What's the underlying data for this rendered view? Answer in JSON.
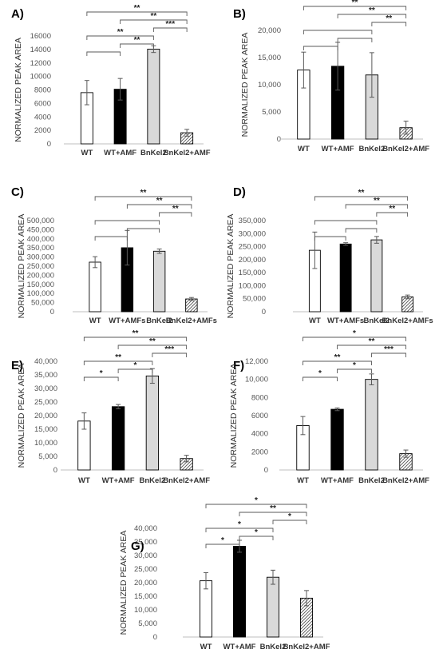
{
  "figure": {
    "background": "#ffffff"
  },
  "chart_data": [
    {
      "panel": "A)",
      "type": "bar",
      "ylabel": "NORMALIZED PEAK AREA",
      "categories": [
        "WT",
        "WT+AMF",
        "BnKel2",
        "BnKel2+AMF"
      ],
      "values": [
        7600,
        8100,
        14050,
        1650
      ],
      "errors": [
        1800,
        1600,
        500,
        500
      ],
      "ylim": [
        0,
        16000
      ],
      "yticks": [
        "0",
        "2000",
        "4000",
        "6000",
        "8000",
        "10000",
        "12000",
        "14000",
        "16000"
      ],
      "brackets": [
        {
          "from": 0,
          "to": 3,
          "label": "**"
        },
        {
          "from": 1,
          "to": 3,
          "label": "**"
        },
        {
          "from": 2,
          "to": 3,
          "label": "***"
        },
        {
          "from": 0,
          "to": 2,
          "label": "**"
        },
        {
          "from": 1,
          "to": 2,
          "label": "**"
        },
        {
          "from": 0,
          "to": 1,
          "label": ""
        }
      ]
    },
    {
      "panel": "B)",
      "type": "bar",
      "ylabel": "NORMALIZED PEAK AREA",
      "categories": [
        "WT",
        "WT+AMF",
        "BnKel2",
        "BnKel2+AMF"
      ],
      "values": [
        12700,
        13400,
        11800,
        2100
      ],
      "errors": [
        3300,
        4400,
        4100,
        1200
      ],
      "ylim": [
        0,
        20000
      ],
      "yticks": [
        "0",
        "5,000",
        "10,000",
        "15,000",
        "20,000"
      ],
      "brackets": [
        {
          "from": 0,
          "to": 3,
          "label": "**"
        },
        {
          "from": 1,
          "to": 3,
          "label": "**"
        },
        {
          "from": 2,
          "to": 3,
          "label": "**"
        },
        {
          "from": 0,
          "to": 2,
          "label": ""
        },
        {
          "from": 1,
          "to": 2,
          "label": ""
        },
        {
          "from": 0,
          "to": 1,
          "label": ""
        }
      ]
    },
    {
      "panel": "C)",
      "type": "bar",
      "ylabel": "NORMALIZED PEAK AREA",
      "categories": [
        "WT",
        "WT+AMFs",
        "BnKel2",
        "BnKel2+AMFs"
      ],
      "values": [
        272000,
        351000,
        332000,
        70000
      ],
      "errors": [
        30000,
        95000,
        12000,
        8000
      ],
      "ylim": [
        0,
        500000
      ],
      "yticks": [
        "0",
        "50,000",
        "100,000",
        "150,000",
        "200,000",
        "250,000",
        "300,000",
        "350,000",
        "400,000",
        "450,000",
        "500,000"
      ],
      "brackets": [
        {
          "from": 0,
          "to": 3,
          "label": "**"
        },
        {
          "from": 1,
          "to": 3,
          "label": "**"
        },
        {
          "from": 2,
          "to": 3,
          "label": "**"
        },
        {
          "from": 0,
          "to": 2,
          "label": ""
        },
        {
          "from": 1,
          "to": 2,
          "label": ""
        },
        {
          "from": 0,
          "to": 1,
          "label": ""
        }
      ]
    },
    {
      "panel": "D)",
      "type": "bar",
      "ylabel": "NORMALIZED PEAK AREA",
      "categories": [
        "WT",
        "WT+AMFs",
        "BnKel2",
        "BnKel2+AMFs"
      ],
      "values": [
        236000,
        260000,
        276000,
        57000
      ],
      "errors": [
        70000,
        5000,
        13000,
        7000
      ],
      "ylim": [
        0,
        350000
      ],
      "yticks": [
        "0",
        "50,000",
        "100,000",
        "150,000",
        "200,000",
        "250,000",
        "300,000",
        "350,000"
      ],
      "brackets": [
        {
          "from": 0,
          "to": 3,
          "label": "**"
        },
        {
          "from": 1,
          "to": 3,
          "label": "**"
        },
        {
          "from": 2,
          "to": 3,
          "label": "**"
        },
        {
          "from": 0,
          "to": 2,
          "label": ""
        },
        {
          "from": 1,
          "to": 2,
          "label": ""
        },
        {
          "from": 0,
          "to": 1,
          "label": ""
        }
      ]
    },
    {
      "panel": "E)",
      "type": "bar",
      "ylabel": "NORMALIZED PEAK AREA",
      "categories": [
        "WT",
        "WT+AMF",
        "BnKel2",
        "BnKel2+AMF"
      ],
      "values": [
        18000,
        23300,
        34600,
        4200
      ],
      "errors": [
        3000,
        800,
        2700,
        1200
      ],
      "ylim": [
        0,
        40000
      ],
      "yticks": [
        "0",
        "5,000",
        "10,000",
        "15,000",
        "20,000",
        "25,000",
        "30,000",
        "35,000",
        "40,000"
      ],
      "brackets": [
        {
          "from": 0,
          "to": 3,
          "label": "**"
        },
        {
          "from": 1,
          "to": 3,
          "label": "**"
        },
        {
          "from": 2,
          "to": 3,
          "label": "***"
        },
        {
          "from": 0,
          "to": 2,
          "label": "**"
        },
        {
          "from": 1,
          "to": 2,
          "label": "*"
        },
        {
          "from": 0,
          "to": 1,
          "label": "*"
        }
      ]
    },
    {
      "panel": "F)",
      "type": "bar",
      "ylabel": "NORMALIZED PEAK AREA",
      "categories": [
        "WT",
        "WT+AMF",
        "BnKel2",
        "BnKel2+AMF"
      ],
      "values": [
        4900,
        6700,
        10000,
        1800
      ],
      "errors": [
        1000,
        150,
        600,
        400
      ],
      "ylim": [
        0,
        12000
      ],
      "yticks": [
        "0",
        "2000",
        "4000",
        "6000",
        "8000",
        "10,000",
        "12,000"
      ],
      "brackets": [
        {
          "from": 0,
          "to": 3,
          "label": "*"
        },
        {
          "from": 1,
          "to": 3,
          "label": "**"
        },
        {
          "from": 2,
          "to": 3,
          "label": "***"
        },
        {
          "from": 0,
          "to": 2,
          "label": "**"
        },
        {
          "from": 1,
          "to": 2,
          "label": "*"
        },
        {
          "from": 0,
          "to": 1,
          "label": "*"
        }
      ]
    },
    {
      "panel": "G)",
      "type": "bar",
      "ylabel": "NORMALIZED PEAK AREA",
      "categories": [
        "WT",
        "WT+AMF",
        "BnKel2",
        "BnKel2+AMF"
      ],
      "values": [
        20700,
        33400,
        22000,
        14300
      ],
      "errors": [
        3000,
        2200,
        2600,
        2800
      ],
      "ylim": [
        0,
        40000
      ],
      "yticks": [
        "0",
        "5,000",
        "10,000",
        "15,000",
        "20,000",
        "25,000",
        "30,000",
        "35,000",
        "40,000"
      ],
      "brackets": [
        {
          "from": 0,
          "to": 3,
          "label": "*"
        },
        {
          "from": 1,
          "to": 3,
          "label": "**"
        },
        {
          "from": 2,
          "to": 3,
          "label": "*"
        },
        {
          "from": 0,
          "to": 2,
          "label": "*"
        },
        {
          "from": 1,
          "to": 2,
          "label": "*"
        },
        {
          "from": 0,
          "to": 1,
          "label": "*"
        }
      ]
    }
  ]
}
